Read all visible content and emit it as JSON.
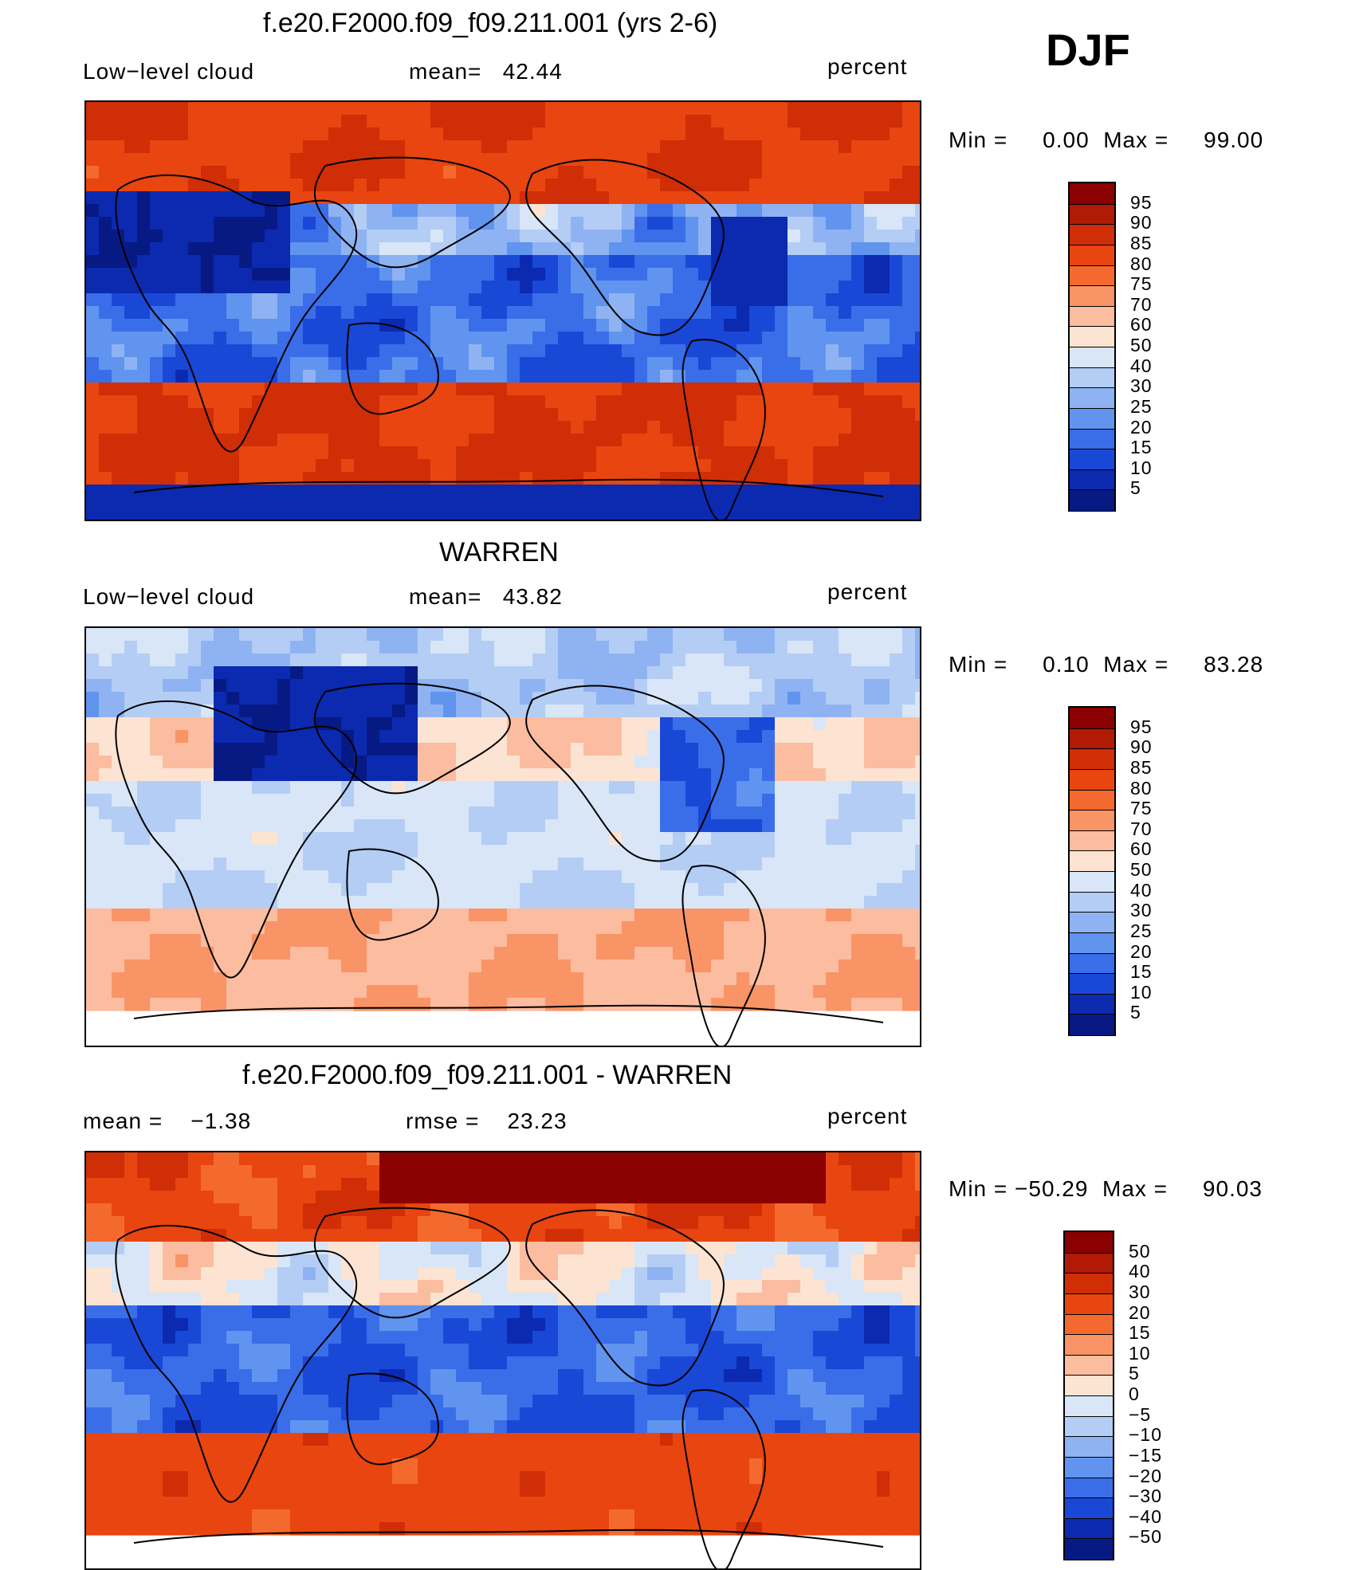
{
  "season": "DJF",
  "panels": [
    {
      "title": "f.e20.F2000.f09_f09.211.001 (yrs 2-6)",
      "left_label": "Low−level cloud",
      "mid_label": "mean=   42.44",
      "right_label": "percent",
      "minmax": "Min =     0.00  Max =     99.00",
      "colorbar": {
        "labels": [
          "95",
          "90",
          "85",
          "80",
          "75",
          "70",
          "60",
          "50",
          "40",
          "30",
          "25",
          "20",
          "15",
          "10",
          "5"
        ],
        "colors": [
          "#8b0000",
          "#b11a05",
          "#cf2e07",
          "#e84510",
          "#f46a2e",
          "#f99466",
          "#fbbca0",
          "#fde3d2",
          "#d8e6f7",
          "#b4cdf5",
          "#8fb3f2",
          "#6094ef",
          "#3a6de8",
          "#1a48d6",
          "#0b2ab0",
          "#071a84"
        ]
      },
      "field": "model"
    },
    {
      "title": "WARREN",
      "left_label": "Low−level cloud",
      "mid_label": "mean=   43.82",
      "right_label": "percent",
      "minmax": "Min =     0.10  Max =     83.28",
      "colorbar": {
        "labels": [
          "95",
          "90",
          "85",
          "80",
          "75",
          "70",
          "60",
          "50",
          "40",
          "30",
          "25",
          "20",
          "15",
          "10",
          "5"
        ],
        "colors": [
          "#8b0000",
          "#b11a05",
          "#cf2e07",
          "#e84510",
          "#f46a2e",
          "#f99466",
          "#fbbca0",
          "#fde3d2",
          "#d8e6f7",
          "#b4cdf5",
          "#8fb3f2",
          "#6094ef",
          "#3a6de8",
          "#1a48d6",
          "#0b2ab0",
          "#071a84"
        ]
      },
      "field": "obs"
    },
    {
      "title": "f.e20.F2000.f09_f09.211.001 - WARREN",
      "left_label": "mean =    −1.38",
      "mid_label": "rmse =    23.23",
      "right_label": "percent",
      "minmax": "Min = −50.29  Max =     90.03",
      "colorbar": {
        "labels": [
          "50",
          "40",
          "30",
          "20",
          "15",
          "10",
          "5",
          "0",
          "−5",
          "−10",
          "−15",
          "−20",
          "−30",
          "−40",
          "−50"
        ],
        "colors": [
          "#8b0000",
          "#b11a05",
          "#cf2e07",
          "#e84510",
          "#f46a2e",
          "#f99466",
          "#fbbca0",
          "#fde3d2",
          "#d8e6f7",
          "#b4cdf5",
          "#8fb3f2",
          "#6094ef",
          "#3a6de8",
          "#1a48d6",
          "#0b2ab0",
          "#071a84"
        ]
      },
      "field": "diff"
    }
  ]
}
